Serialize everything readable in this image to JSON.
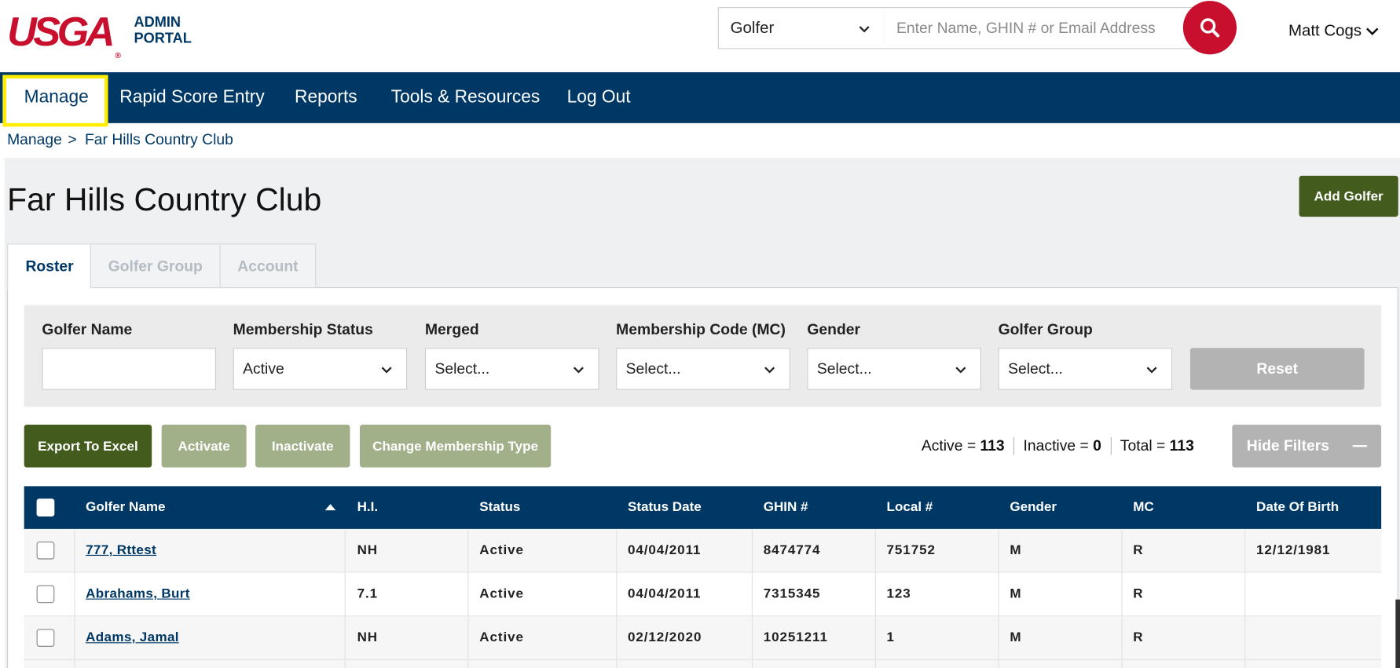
{
  "header": {
    "logo": "USGA",
    "logo_mark": "®",
    "portal": [
      "ADMIN",
      "PORTAL"
    ],
    "search_type": "Golfer",
    "search_placeholder": "Enter Name, GHIN # or Email Address",
    "user": "Matt Cogs"
  },
  "nav": [
    "Manage",
    "Rapid Score Entry",
    "Reports",
    "Tools & Resources",
    "Log Out"
  ],
  "breadcrumb": {
    "items": [
      "Manage",
      "Far Hills Country Club"
    ],
    "separator": ">"
  },
  "page_title": "Far Hills Country Club",
  "add_button": "Add Golfer",
  "tabs": [
    "Roster",
    "Golfer Group",
    "Account"
  ],
  "filters": [
    {
      "label": "Golfer Name"
    },
    {
      "label": "Membership Status",
      "value": "Active"
    },
    {
      "label": "Merged",
      "value": "Select..."
    },
    {
      "label": "Membership Code (MC)",
      "value": "Select..."
    },
    {
      "label": "Gender",
      "value": "Select..."
    },
    {
      "label": "Golfer Group",
      "value": "Select..."
    }
  ],
  "reset": "Reset",
  "actions": [
    "Export To Excel",
    "Activate",
    "Inactivate",
    "Change Membership Type"
  ],
  "counts": [
    {
      "label": "Active =",
      "value": 113
    },
    {
      "label": "Inactive =",
      "value": 0
    },
    {
      "label": "Total =",
      "value": 113
    }
  ],
  "hide_filters": "Hide Filters",
  "table": {
    "columns": [
      "Golfer Name",
      "H.I.",
      "Status",
      "Status Date",
      "GHIN #",
      "Local #",
      "Gender",
      "MC",
      "Date Of Birth"
    ],
    "rows": [
      [
        "777, Rttest",
        "NH",
        "Active",
        "04/04/2011",
        "8474774",
        "751752",
        "M",
        "R",
        "12/12/1981"
      ],
      [
        "Abrahams, Burt",
        "7.1",
        "Active",
        "04/04/2011",
        "7315345",
        "123",
        "M",
        "R",
        null
      ],
      [
        "Adams, Jamal",
        "NH",
        "Active",
        "02/12/2020",
        "10251211",
        "1",
        "M",
        "R",
        null
      ]
    ]
  }
}
